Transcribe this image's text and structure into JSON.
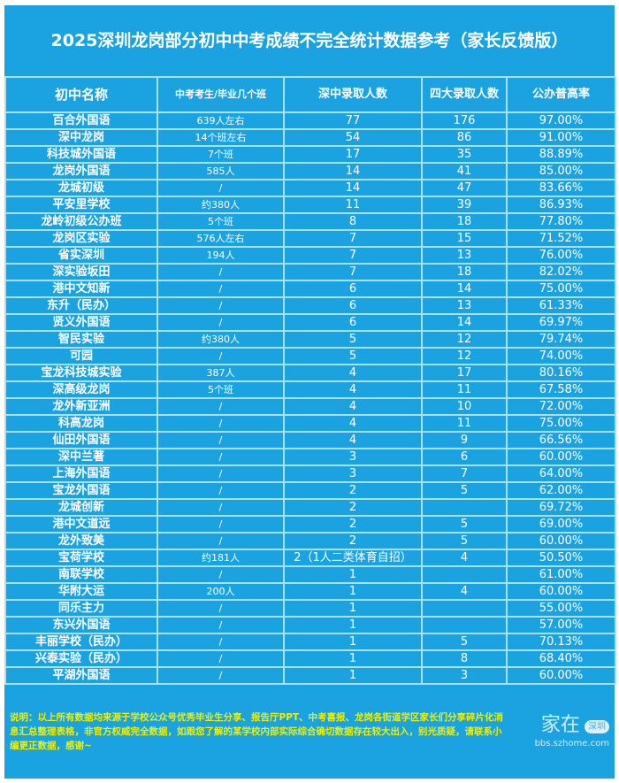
{
  "title": "2025深圳龙岗部分初中中考成绩不完全统计数据参考（家长反馈版）",
  "columns": [
    "初中名称",
    "中考考生/毕业几个班",
    "深中录取人数",
    "四大录取人数",
    "公办普高率"
  ],
  "rows": [
    [
      "百合外国语",
      "639人左右",
      "77",
      "176",
      "97.00%"
    ],
    [
      "深中龙岗",
      "14个班左右",
      "54",
      "86",
      "91.00%"
    ],
    [
      "科技城外国语",
      "7个班",
      "17",
      "35",
      "88.89%"
    ],
    [
      "龙岗外国语",
      "585人",
      "14",
      "41",
      "85.00%"
    ],
    [
      "龙城初级",
      "/",
      "14",
      "47",
      "83.66%"
    ],
    [
      "平安里学校",
      "约380人",
      "11",
      "39",
      "86.93%"
    ],
    [
      "龙岭初级公办班",
      "5个班",
      "8",
      "18",
      "77.80%"
    ],
    [
      "龙岗区实验",
      "576人左右",
      "7",
      "15",
      "71.52%"
    ],
    [
      "省实深圳",
      "194人",
      "7",
      "13",
      "76.00%"
    ],
    [
      "深实验坂田",
      "/",
      "7",
      "18",
      "82.02%"
    ],
    [
      "港中文知新",
      "/",
      "6",
      "14",
      "75.00%"
    ],
    [
      "东升（民办）",
      "/",
      "6",
      "13",
      "61.33%"
    ],
    [
      "贤义外国语",
      "/",
      "6",
      "14",
      "69.97%"
    ],
    [
      "智民实验",
      "约380人",
      "5",
      "12",
      "79.74%"
    ],
    [
      "可园",
      "/",
      "5",
      "12",
      "74.00%"
    ],
    [
      "宝龙科技城实验",
      "387人",
      "4",
      "17",
      "80.16%"
    ],
    [
      "深高级龙岗",
      "5个班",
      "4",
      "11",
      "67.58%"
    ],
    [
      "龙外新亚洲",
      "/",
      "4",
      "10",
      "72.00%"
    ],
    [
      "科高龙岗",
      "/",
      "4",
      "11",
      "75.00%"
    ],
    [
      "仙田外国语",
      "/",
      "4",
      "9",
      "66.56%"
    ],
    [
      "深中兰著",
      "/",
      "3",
      "6",
      "60.00%"
    ],
    [
      "上海外国语",
      "/",
      "3",
      "7",
      "64.00%"
    ],
    [
      "宝龙外国语",
      "/",
      "2",
      "5",
      "62.00%"
    ],
    [
      "龙城创新",
      "/",
      "2",
      "",
      "69.72%"
    ],
    [
      "港中文道远",
      "/",
      "2",
      "5",
      "69.00%"
    ],
    [
      "龙外致美",
      "/",
      "2",
      "5",
      "60.00%"
    ],
    [
      "宝荷学校",
      "约181人",
      "2（1人二类体育自招）",
      "4",
      "50.50%"
    ],
    [
      "南联学校",
      "/",
      "1",
      "",
      "61.00%"
    ],
    [
      "华附大运",
      "200人",
      "1",
      "4",
      "60.00%"
    ],
    [
      "同乐主力",
      "/",
      "1",
      "",
      "55.00%"
    ],
    [
      "东兴外国语",
      "/",
      "1",
      "",
      "57.00%"
    ],
    [
      "丰丽学校（民办）",
      "/",
      "1",
      "5",
      "70.13%"
    ],
    [
      "兴泰实验（民办）",
      "/",
      "1",
      "8",
      "68.40%"
    ],
    [
      "平湖外国语",
      "/",
      "1",
      "3",
      "60.00%"
    ]
  ],
  "note": "说明：以上所有数据均来源于学校公众号优秀毕业生分享、报告厅PPT、中考喜报、龙岗各街道学区家长们分享碎片化消息汇总整理表格，非官方权威完全数据，如跟您了解的某学校内部实际综合确切数据存在较大出入，别光质疑，请联系小编更正数据，感谢~",
  "watermark": {
    "logo": "家在",
    "badge": "深圳",
    "url": "bbs.szhome.com"
  },
  "colors": {
    "background": "#1aa3e0",
    "grid": "#a8e0f4",
    "note_text": "#eef000"
  }
}
